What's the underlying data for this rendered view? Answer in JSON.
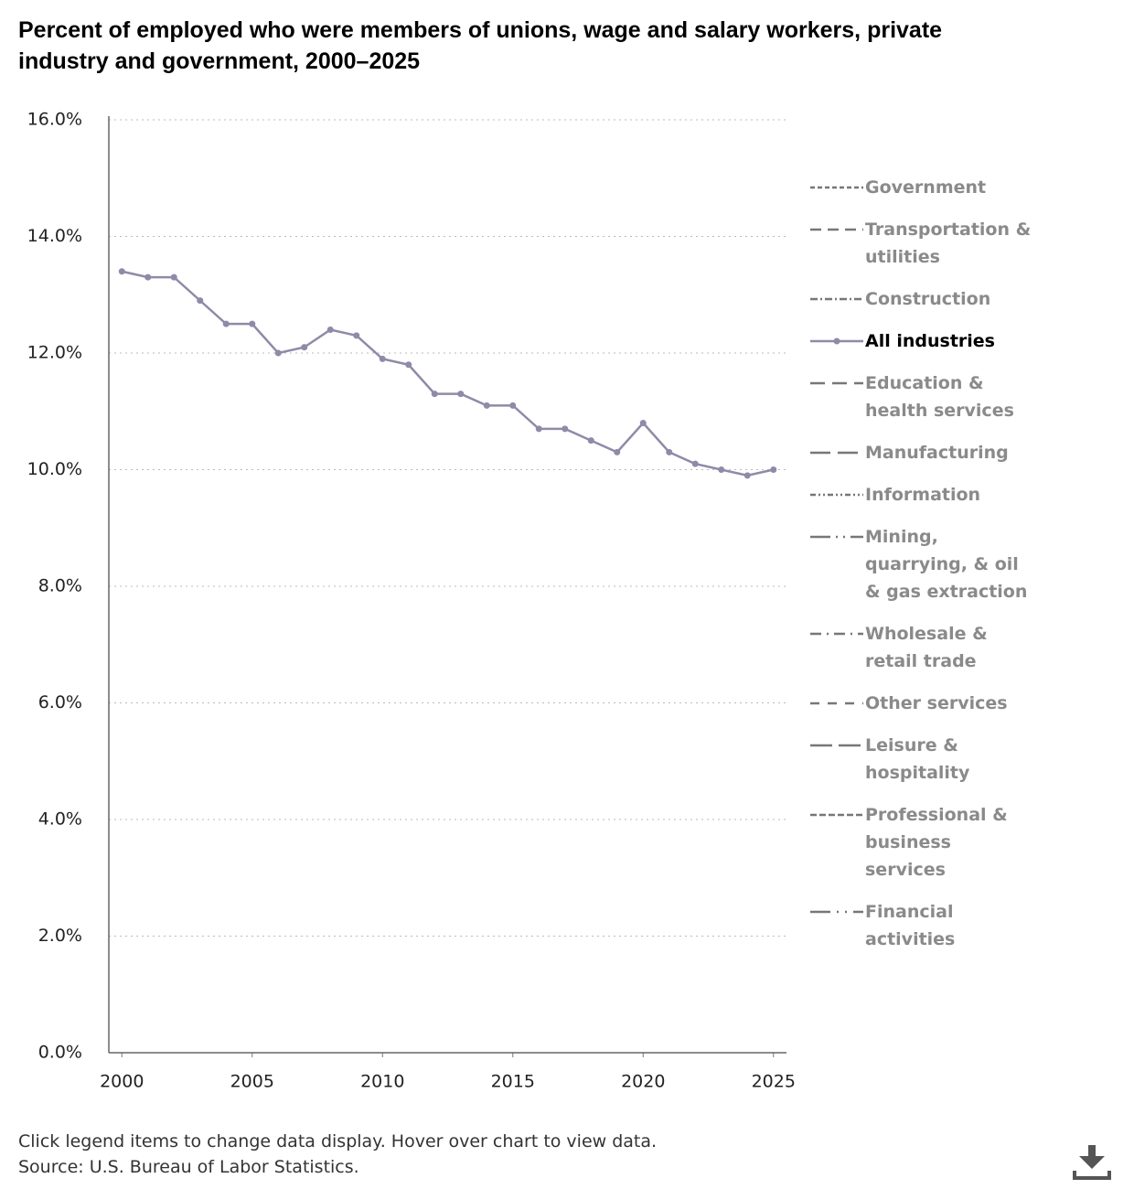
{
  "chart_data": {
    "type": "line",
    "title": "Percent of employed who were members of unions, wage and salary workers, private industry and government, 2000–2025",
    "note": "Click legend items to change data display. Hover over chart to view data.",
    "source": "Source: U.S. Bureau of Labor Statistics.",
    "x": [
      2000,
      2001,
      2002,
      2003,
      2004,
      2005,
      2006,
      2007,
      2008,
      2009,
      2010,
      2011,
      2012,
      2013,
      2014,
      2015,
      2016,
      2017,
      2018,
      2019,
      2020,
      2021,
      2022,
      2023,
      2024,
      2025
    ],
    "series": [
      {
        "name": "Government",
        "visible": false,
        "dash": "5,3"
      },
      {
        "name": "Transportation & utilities",
        "visible": false,
        "dash": "12,7"
      },
      {
        "name": "Construction",
        "visible": false,
        "dash": "8,3,2,3"
      },
      {
        "name": "All industries",
        "visible": true,
        "color": "#8f8aa8",
        "markers": true,
        "values": [
          13.4,
          13.3,
          13.3,
          12.9,
          12.5,
          12.5,
          12.0,
          12.1,
          12.4,
          12.3,
          11.9,
          11.8,
          11.3,
          11.3,
          11.1,
          11.1,
          10.7,
          10.7,
          10.5,
          10.3,
          10.8,
          10.3,
          10.1,
          10.0,
          9.9,
          10.0
        ]
      },
      {
        "name": "Education & health services",
        "visible": false,
        "dash": "16,8"
      },
      {
        "name": "Manufacturing",
        "visible": false,
        "dash": "22,8"
      },
      {
        "name": "Information",
        "visible": false,
        "dash": "6,3,2,3,2,3"
      },
      {
        "name": "Mining, quarrying, & oil & gas extraction",
        "visible": false,
        "dash": "22,6,2,6,2,6"
      },
      {
        "name": "Wholesale & retail trade",
        "visible": false,
        "dash": "12,6,2,6"
      },
      {
        "name": "Other services",
        "visible": false,
        "dash": "10,9"
      },
      {
        "name": "Leisure & hospitality",
        "visible": false,
        "dash": "24,7"
      },
      {
        "name": "Professional & business services",
        "visible": false,
        "dash": "7,3"
      },
      {
        "name": "Financial activities",
        "visible": false,
        "dash": "22,7,2,7,2,7"
      }
    ],
    "xlim": [
      1999.5,
      2025.5
    ],
    "xticks": [
      2000,
      2005,
      2010,
      2015,
      2020,
      2025
    ],
    "ylim": [
      0,
      16
    ],
    "yticks": [
      {
        "value": 0,
        "label": "0.0%"
      },
      {
        "value": 2,
        "label": "2.0%"
      },
      {
        "value": 4,
        "label": "4.0%"
      },
      {
        "value": 6,
        "label": "6.0%"
      },
      {
        "value": 8,
        "label": "8.0%"
      },
      {
        "value": 10,
        "label": "10.0%"
      },
      {
        "value": 12,
        "label": "12.0%"
      },
      {
        "value": 14,
        "label": "14.0%"
      },
      {
        "value": 16,
        "label": "16.0%"
      }
    ],
    "grid": true
  }
}
